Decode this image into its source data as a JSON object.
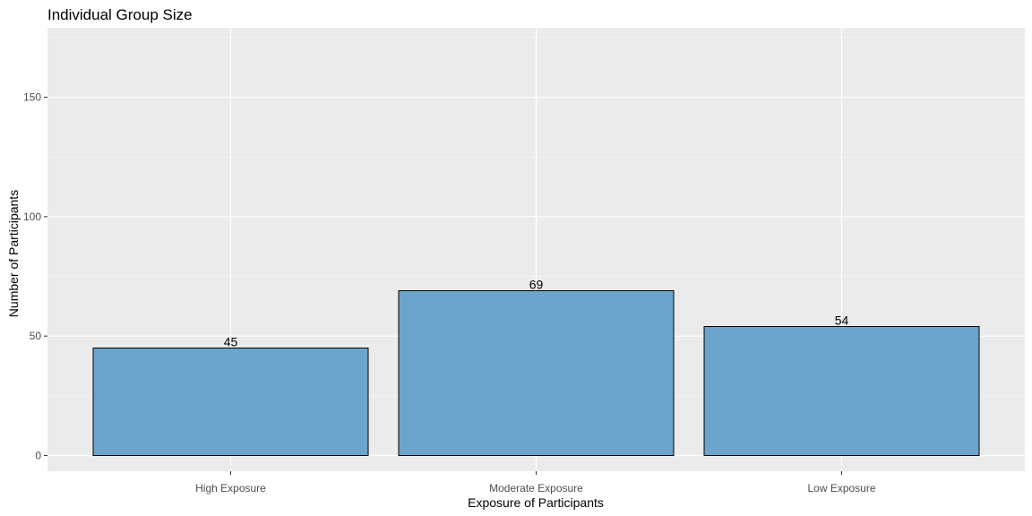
{
  "chart_data": {
    "type": "bar",
    "title": "Individual Group Size",
    "xlabel": "Exposure of Participants",
    "ylabel": "Number of Participants",
    "categories": [
      "High Exposure",
      "Moderate Exposure",
      "Low Exposure"
    ],
    "values": [
      45,
      69,
      54
    ],
    "data_labels": [
      "45",
      "69",
      "54"
    ],
    "ylim": [
      0,
      175
    ],
    "y_ticks": [
      0,
      50,
      100,
      150
    ],
    "y_tick_labels": [
      "0",
      "50",
      "100",
      "150"
    ],
    "grid": true,
    "legend": "none",
    "colors": {
      "bar_fill": "#6ca5cc",
      "bar_stroke": "#000000",
      "panel": "#ebebeb",
      "grid_major": "#ffffff",
      "grid_minor": "#f5f5f5",
      "tick_text": "#4d4d4d"
    }
  }
}
